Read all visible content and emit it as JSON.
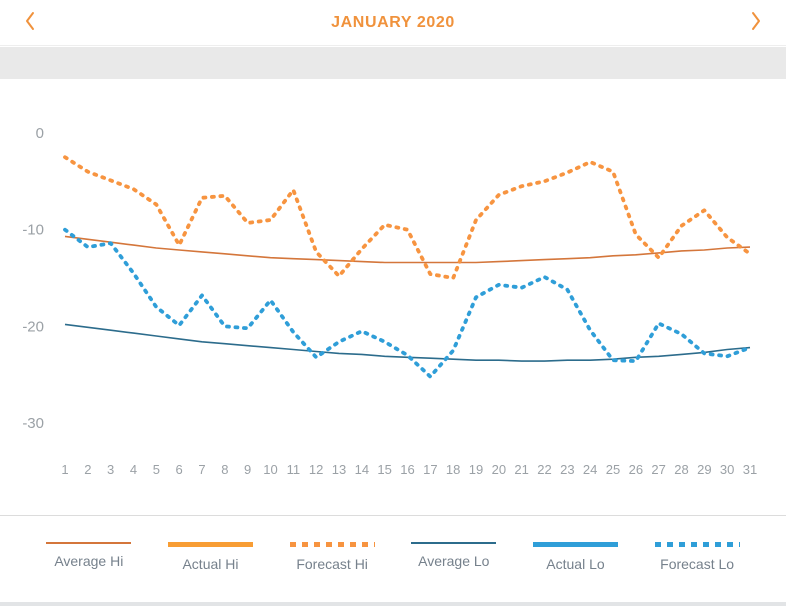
{
  "header": {
    "title": "JANUARY 2020",
    "prev_icon": "chevron-left",
    "next_icon": "chevron-right"
  },
  "colors": {
    "accent_orange": "#f0923c",
    "average_hi": "#d4763b",
    "actual_hi": "#f89d34",
    "forecast_hi": "#f79440",
    "average_lo": "#2c6c8c",
    "actual_lo": "#2f9ed8",
    "forecast_lo": "#2f9ed8",
    "axis_label": "#9ba1a6",
    "legend_label": "#76818c",
    "band_gray": "#e9e9e9"
  },
  "chart_data": {
    "type": "line",
    "title": "JANUARY 2020",
    "xlabel": "",
    "ylabel": "",
    "x": [
      1,
      2,
      3,
      4,
      5,
      6,
      7,
      8,
      9,
      10,
      11,
      12,
      13,
      14,
      15,
      16,
      17,
      18,
      19,
      20,
      21,
      22,
      23,
      24,
      25,
      26,
      27,
      28,
      29,
      30,
      31
    ],
    "yticks": [
      0,
      -10,
      -20,
      -30
    ],
    "ylim": [
      -33,
      4
    ],
    "grid": false,
    "legend_position": "bottom",
    "series": [
      {
        "name": "Average Hi",
        "style": "solid-thin",
        "color": "#d4763b",
        "values": [
          -10.7,
          -11.0,
          -11.3,
          -11.6,
          -11.9,
          -12.1,
          -12.3,
          -12.5,
          -12.7,
          -12.9,
          -13.0,
          -13.1,
          -13.2,
          -13.3,
          -13.4,
          -13.4,
          -13.4,
          -13.4,
          -13.4,
          -13.3,
          -13.2,
          -13.1,
          -13.0,
          -12.9,
          -12.7,
          -12.6,
          -12.4,
          -12.2,
          -12.1,
          -11.9,
          -11.8
        ]
      },
      {
        "name": "Actual Hi",
        "style": "solid-thick",
        "color": "#f89d34",
        "values": []
      },
      {
        "name": "Forecast Hi",
        "style": "dotted",
        "color": "#f79440",
        "values": [
          -2.5,
          -4.0,
          -4.9,
          -5.8,
          -7.4,
          -11.6,
          -6.7,
          -6.5,
          -9.3,
          -9.0,
          -5.9,
          -12.3,
          -14.8,
          -12.0,
          -9.5,
          -10.0,
          -14.6,
          -15.0,
          -9.0,
          -6.4,
          -5.5,
          -5.0,
          -4.1,
          -3.0,
          -4.0,
          -10.5,
          -12.9,
          -9.6,
          -8.0,
          -10.8,
          -12.5
        ]
      },
      {
        "name": "Average Lo",
        "style": "solid-thin",
        "color": "#2c6c8c",
        "values": [
          -19.8,
          -20.1,
          -20.4,
          -20.7,
          -21.0,
          -21.3,
          -21.6,
          -21.8,
          -22.0,
          -22.2,
          -22.4,
          -22.6,
          -22.8,
          -22.9,
          -23.1,
          -23.2,
          -23.3,
          -23.4,
          -23.5,
          -23.5,
          -23.6,
          -23.6,
          -23.5,
          -23.5,
          -23.4,
          -23.2,
          -23.1,
          -22.9,
          -22.7,
          -22.4,
          -22.2
        ]
      },
      {
        "name": "Actual Lo",
        "style": "solid-thick",
        "color": "#2f9ed8",
        "values": []
      },
      {
        "name": "Forecast Lo",
        "style": "dotted",
        "color": "#2f9ed8",
        "values": [
          -10.0,
          -11.8,
          -11.4,
          -14.5,
          -18.0,
          -19.9,
          -16.8,
          -20.0,
          -20.2,
          -17.3,
          -20.6,
          -23.2,
          -21.6,
          -20.5,
          -21.6,
          -23.0,
          -25.2,
          -22.5,
          -17.0,
          -15.7,
          -16.0,
          -14.9,
          -16.2,
          -20.4,
          -23.5,
          -23.6,
          -19.7,
          -20.8,
          -22.8,
          -23.1,
          -22.2
        ]
      }
    ]
  },
  "legend": {
    "items": [
      {
        "label": "Average Hi",
        "style": "solid-thin",
        "color": "#d4763b"
      },
      {
        "label": "Actual Hi",
        "style": "solid-thick",
        "color": "#f89d34"
      },
      {
        "label": "Forecast Hi",
        "style": "dotted",
        "color": "#f79440"
      },
      {
        "label": "Average Lo",
        "style": "solid-thin",
        "color": "#2c6c8c"
      },
      {
        "label": "Actual Lo",
        "style": "solid-thick",
        "color": "#2f9ed8"
      },
      {
        "label": "Forecast Lo",
        "style": "dotted",
        "color": "#2f9ed8"
      }
    ]
  }
}
